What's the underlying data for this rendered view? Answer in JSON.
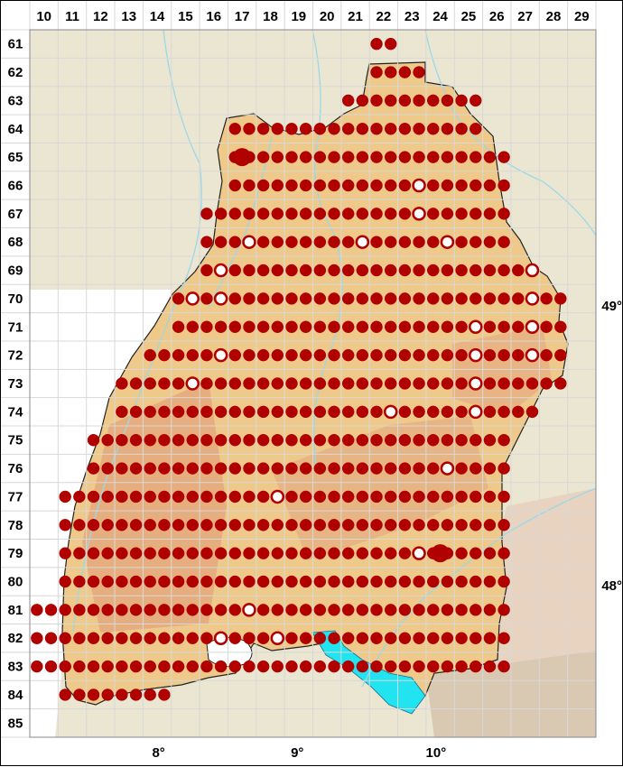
{
  "map": {
    "grid_columns": [
      "10",
      "11",
      "12",
      "13",
      "14",
      "15",
      "16",
      "17",
      "18",
      "19",
      "20",
      "21",
      "22",
      "23",
      "24",
      "25",
      "26",
      "27",
      "28",
      "29"
    ],
    "grid_rows": [
      "61",
      "62",
      "63",
      "64",
      "65",
      "66",
      "67",
      "68",
      "69",
      "70",
      "71",
      "72",
      "73",
      "74",
      "75",
      "76",
      "77",
      "78",
      "79",
      "80",
      "81",
      "82",
      "83",
      "84",
      "85"
    ],
    "longitude_labels": [
      {
        "text": "8°",
        "lon": 8
      },
      {
        "text": "9°",
        "lon": 9
      },
      {
        "text": "10°",
        "lon": 10
      }
    ],
    "latitude_labels": [
      {
        "text": "49°",
        "lat": 49
      },
      {
        "text": "48°",
        "lat": 48
      }
    ],
    "colors": {
      "occurrence_dot": "#b00000",
      "region_fill": "#eec98a",
      "outside_land": "#eae6d2",
      "lake": "#22e4f0",
      "grid_line": "#d8d8d8",
      "river": "#9ad8e8",
      "border": "#222222"
    },
    "features": {
      "lake_name": "",
      "large_markers": [
        {
          "col": "17",
          "row": "65"
        },
        {
          "col": "24",
          "row": "79"
        }
      ]
    }
  }
}
